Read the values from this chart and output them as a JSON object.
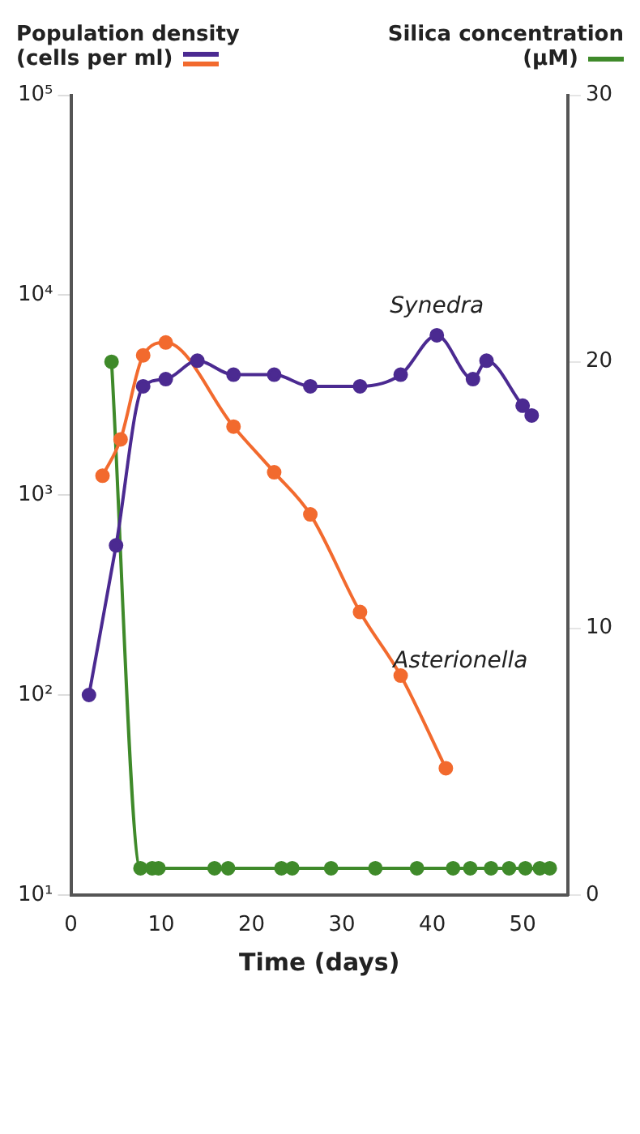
{
  "chart_data": {
    "type": "line",
    "xlabel": "Time (days)",
    "ylabel": "Population density (cells per ml)",
    "y2label": "Silica concentration (μM)",
    "xlim": [
      0,
      55
    ],
    "xticks": [
      0,
      10,
      20,
      30,
      40,
      50
    ],
    "ylim": [
      10,
      100000
    ],
    "yticks": [
      {
        "value": 10,
        "label": "10¹"
      },
      {
        "value": 100,
        "label": "10²"
      },
      {
        "value": 1000,
        "label": "10³"
      },
      {
        "value": 10000,
        "label": "10⁴"
      },
      {
        "value": 100000,
        "label": "10⁵"
      }
    ],
    "y2lim": [
      0,
      30
    ],
    "y2ticks": [
      0,
      10,
      20,
      30
    ],
    "log": "y",
    "grid": false,
    "legend": false,
    "marker": "circle",
    "line_style": "solid",
    "series": [
      {
        "name": "Synedra",
        "color": "#4b2a91",
        "x": [
          2,
          5,
          8,
          10.5,
          14,
          18,
          22.5,
          26.5,
          32,
          36.5,
          40.5,
          44.5,
          46,
          50,
          51
        ],
        "values": [
          100,
          560,
          3500,
          3800,
          4700,
          4000,
          4000,
          3500,
          3500,
          4000,
          6300,
          3800,
          4700,
          2800,
          2500
        ]
      },
      {
        "name": "Asterionella",
        "color": "#f26a2e",
        "x": [
          3.5,
          5.5,
          8,
          10.5,
          18,
          22.5,
          26.5,
          32,
          36.5,
          41.5
        ],
        "values": [
          1250,
          1900,
          5000,
          5800,
          2200,
          1300,
          800,
          260,
          125,
          43
        ]
      },
      {
        "color": "#3f8a2a",
        "axis": "y2",
        "x": [
          4.5,
          7.7,
          9,
          9.7,
          15.9,
          17.4,
          23.3,
          24.5,
          28.8,
          33.7,
          38.3,
          42.3,
          44.2,
          46.5,
          48.5,
          50.3,
          51.9,
          53
        ],
        "values": [
          20,
          1,
          1,
          1,
          1,
          1,
          1,
          1,
          1,
          1,
          1,
          1,
          1,
          1,
          1,
          1,
          1,
          1
        ]
      }
    ]
  }
}
